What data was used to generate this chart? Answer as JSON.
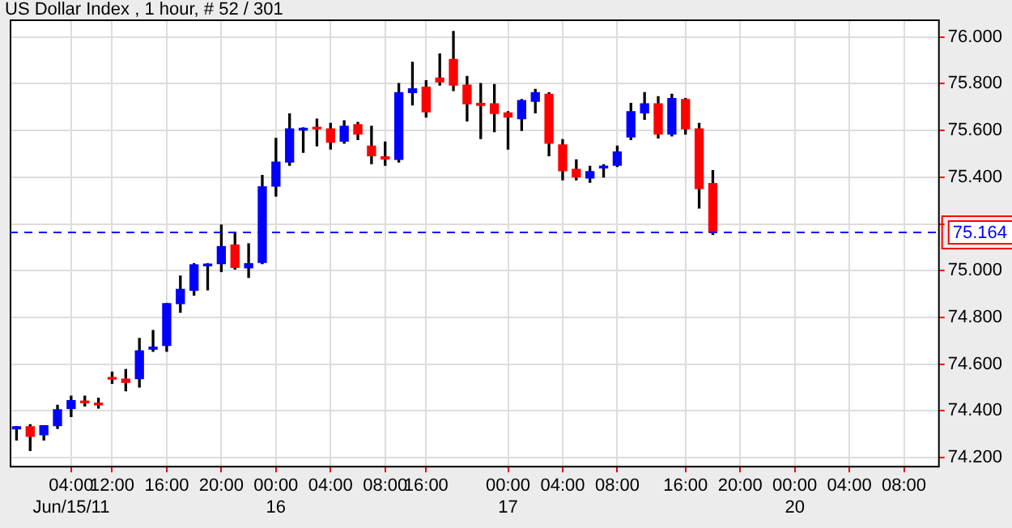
{
  "chart_data": {
    "type": "candlestick",
    "title": "US Dollar Index , 1 hour, # 52 / 301",
    "categories": [
      null,
      null,
      null,
      null,
      "04:00\nJun/15/11",
      null,
      null,
      "12:00",
      null,
      null,
      null,
      "16:00",
      null,
      null,
      null,
      "20:00",
      null,
      null,
      null,
      "00:00\n16",
      null,
      null,
      null,
      "04:00",
      null,
      null,
      null,
      "08:00",
      null,
      null,
      "16:00",
      null,
      null,
      null,
      null,
      null,
      "00:00\n17",
      null,
      null,
      null,
      "04:00",
      null,
      null,
      null,
      "08:00",
      null,
      null,
      null,
      null,
      "16:00",
      null,
      null,
      null,
      "20:00",
      null,
      null,
      null,
      "00:00\n20",
      null,
      null,
      null,
      "04:00",
      null,
      null,
      null,
      "08:00",
      null,
      null
    ],
    "ohlc": [
      [
        74.323,
        74.332,
        74.275,
        74.332
      ],
      [
        74.332,
        74.341,
        74.23,
        74.291
      ],
      [
        74.298,
        74.337,
        74.275,
        74.337
      ],
      [
        74.337,
        74.424,
        74.325,
        74.405
      ],
      [
        74.41,
        74.463,
        74.376,
        74.444
      ],
      [
        74.442,
        74.463,
        74.421,
        74.435
      ],
      [
        74.433,
        74.454,
        74.412,
        74.426
      ],
      [
        74.543,
        74.566,
        74.518,
        74.536
      ],
      [
        74.536,
        74.577,
        74.486,
        74.522
      ],
      [
        74.538,
        74.71,
        74.502,
        74.657
      ],
      [
        74.664,
        74.744,
        74.655,
        74.673
      ],
      [
        74.68,
        74.859,
        74.655,
        74.859
      ],
      [
        74.859,
        74.977,
        74.822,
        74.92
      ],
      [
        74.916,
        75.03,
        74.895,
        75.025
      ],
      [
        75.021,
        75.03,
        74.918,
        75.028
      ],
      [
        75.03,
        75.195,
        74.996,
        75.103
      ],
      [
        75.11,
        75.165,
        75.007,
        75.014
      ],
      [
        75.012,
        75.115,
        74.971,
        75.03
      ],
      [
        75.035,
        75.407,
        75.03,
        75.359
      ],
      [
        75.362,
        75.566,
        75.319,
        75.465
      ],
      [
        75.465,
        75.671,
        75.451,
        75.607
      ],
      [
        75.602,
        75.611,
        75.506,
        75.609
      ],
      [
        75.614,
        75.648,
        75.534,
        75.607
      ],
      [
        75.607,
        75.63,
        75.52,
        75.55
      ],
      [
        75.554,
        75.641,
        75.545,
        75.618
      ],
      [
        75.625,
        75.634,
        75.561,
        75.584
      ],
      [
        75.533,
        75.618,
        75.458,
        75.492
      ],
      [
        75.487,
        75.55,
        75.451,
        75.478
      ],
      [
        75.476,
        75.801,
        75.465,
        75.762
      ],
      [
        75.762,
        75.892,
        75.709,
        75.778
      ],
      [
        75.785,
        75.813,
        75.657,
        75.68
      ],
      [
        75.824,
        75.927,
        75.794,
        75.808
      ],
      [
        75.904,
        76.023,
        75.771,
        75.794
      ],
      [
        75.794,
        75.831,
        75.641,
        75.714
      ],
      [
        75.716,
        75.801,
        75.565,
        75.707
      ],
      [
        75.714,
        75.796,
        75.595,
        75.673
      ],
      [
        75.675,
        75.68,
        75.52,
        75.657
      ],
      [
        75.65,
        75.732,
        75.6,
        75.728
      ],
      [
        75.725,
        75.776,
        75.675,
        75.762
      ],
      [
        75.755,
        75.762,
        75.492,
        75.545
      ],
      [
        75.538,
        75.561,
        75.389,
        75.428
      ],
      [
        75.433,
        75.474,
        75.389,
        75.401
      ],
      [
        75.396,
        75.446,
        75.378,
        75.424
      ],
      [
        75.44,
        75.453,
        75.401,
        75.446
      ],
      [
        75.451,
        75.533,
        75.446,
        75.508
      ],
      [
        75.572,
        75.716,
        75.561,
        75.68
      ],
      [
        75.675,
        75.762,
        75.648,
        75.714
      ],
      [
        75.714,
        75.744,
        75.568,
        75.584
      ],
      [
        75.584,
        75.755,
        75.577,
        75.737
      ],
      [
        75.732,
        75.737,
        75.584,
        75.607
      ],
      [
        75.607,
        75.63,
        75.268,
        75.351
      ],
      [
        75.373,
        75.428,
        75.155,
        75.164
      ],
      null,
      null,
      null,
      null,
      null,
      null,
      null,
      null,
      null,
      null,
      null,
      null,
      null,
      null,
      null,
      null
    ],
    "colors": [
      "#0000ff",
      "#ff0000",
      "#0000ff",
      "#0000ff",
      "#0000ff",
      "#ff0000",
      "#ff0000",
      "#ff0000",
      "#ff0000",
      "#0000ff",
      "#0000ff",
      "#0000ff",
      "#0000ff",
      "#0000ff",
      "#0000ff",
      "#0000ff",
      "#ff0000",
      "#0000ff",
      "#0000ff",
      "#0000ff",
      "#0000ff",
      "#0000ff",
      "#ff0000",
      "#ff0000",
      "#0000ff",
      "#ff0000",
      "#ff0000",
      "#ff0000",
      "#0000ff",
      "#0000ff",
      "#ff0000",
      "#ff0000",
      "#ff0000",
      "#ff0000",
      "#ff0000",
      "#ff0000",
      "#ff0000",
      "#0000ff",
      "#0000ff",
      "#ff0000",
      "#ff0000",
      "#ff0000",
      "#0000ff",
      "#0000ff",
      "#0000ff",
      "#0000ff",
      "#0000ff",
      "#ff0000",
      "#0000ff",
      "#ff0000",
      "#ff0000",
      "#ff0000",
      null,
      null,
      null,
      null,
      null,
      null,
      null,
      null,
      null,
      null,
      null,
      null,
      null,
      null,
      null,
      null
    ],
    "ylim": [
      74.165,
      76.075
    ],
    "yticks": [
      {
        "value": 74.2,
        "label": "74.200"
      },
      {
        "value": 74.4,
        "label": "74.400"
      },
      {
        "value": 74.6,
        "label": "74.600"
      },
      {
        "value": 74.8,
        "label": "74.800"
      },
      {
        "value": 75,
        "label": "75.000"
      },
      {
        "value": 75.2,
        "label": null
      },
      {
        "value": 75.4,
        "label": "75.400"
      },
      {
        "value": 75.6,
        "label": "75.600"
      },
      {
        "value": 75.8,
        "label": "75.800"
      },
      {
        "value": 76,
        "label": "76.000"
      }
    ],
    "ref_lines": [
      {
        "axis": "y",
        "value": 75.164,
        "label": "75.164",
        "color": "#0000ff",
        "line_style": "dashed"
      }
    ],
    "grid": true
  }
}
